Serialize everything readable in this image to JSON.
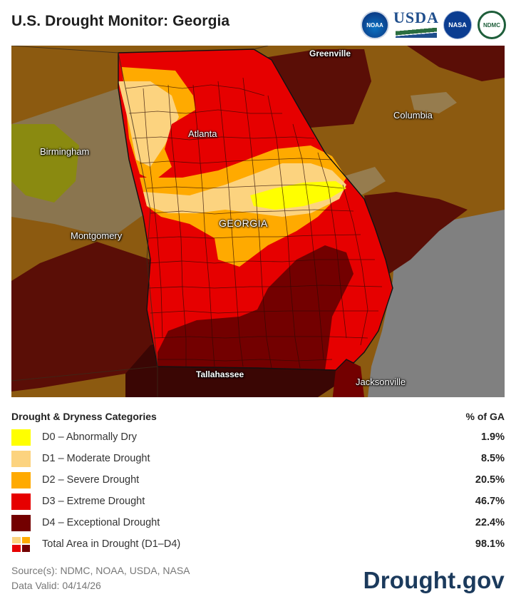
{
  "header": {
    "title": "U.S. Drought Monitor: Georgia",
    "logos": [
      {
        "name": "noaa-logo",
        "text": "NOAA"
      },
      {
        "name": "usda-logo",
        "text": "USDA"
      },
      {
        "name": "nasa-logo",
        "text": "NASA"
      },
      {
        "name": "ndmc-logo",
        "text": "NDMC"
      }
    ]
  },
  "map": {
    "labels": {
      "greenville": "Greenville",
      "columbia": "Columbia",
      "atlanta": "Atlanta",
      "birmingham": "Birmingham",
      "georgia": "GEORGIA",
      "montgomery": "Montgomery",
      "tallahassee": "Tallahassee",
      "jacksonville": "Jacksonville"
    },
    "colors": {
      "d0": "#ffff00",
      "d1": "#fcd37f",
      "d2": "#ffaa00",
      "d3": "#e60000",
      "d4": "#730000",
      "outside_base": "#8c5a10",
      "ocean": "#808080"
    }
  },
  "legend": {
    "heading": "Drought & Dryness Categories",
    "pct_heading": "% of GA",
    "rows": [
      {
        "label": "D0 – Abnormally Dry",
        "pct": "1.9%",
        "color": "#ffff00"
      },
      {
        "label": "D1 – Moderate Drought",
        "pct": "8.5%",
        "color": "#fcd37f"
      },
      {
        "label": "D2 – Severe Drought",
        "pct": "20.5%",
        "color": "#ffaa00"
      },
      {
        "label": "D3 – Extreme Drought",
        "pct": "46.7%",
        "color": "#e60000"
      },
      {
        "label": "D4 – Exceptional Drought",
        "pct": "22.4%",
        "color": "#730000"
      }
    ],
    "total": {
      "label": "Total Area in Drought (D1–D4)",
      "pct": "98.1%"
    }
  },
  "footer": {
    "sources": "Source(s): NDMC, NOAA, USDA, NASA",
    "valid": "Data Valid: 04/14/26",
    "brand": "Drought.gov"
  }
}
